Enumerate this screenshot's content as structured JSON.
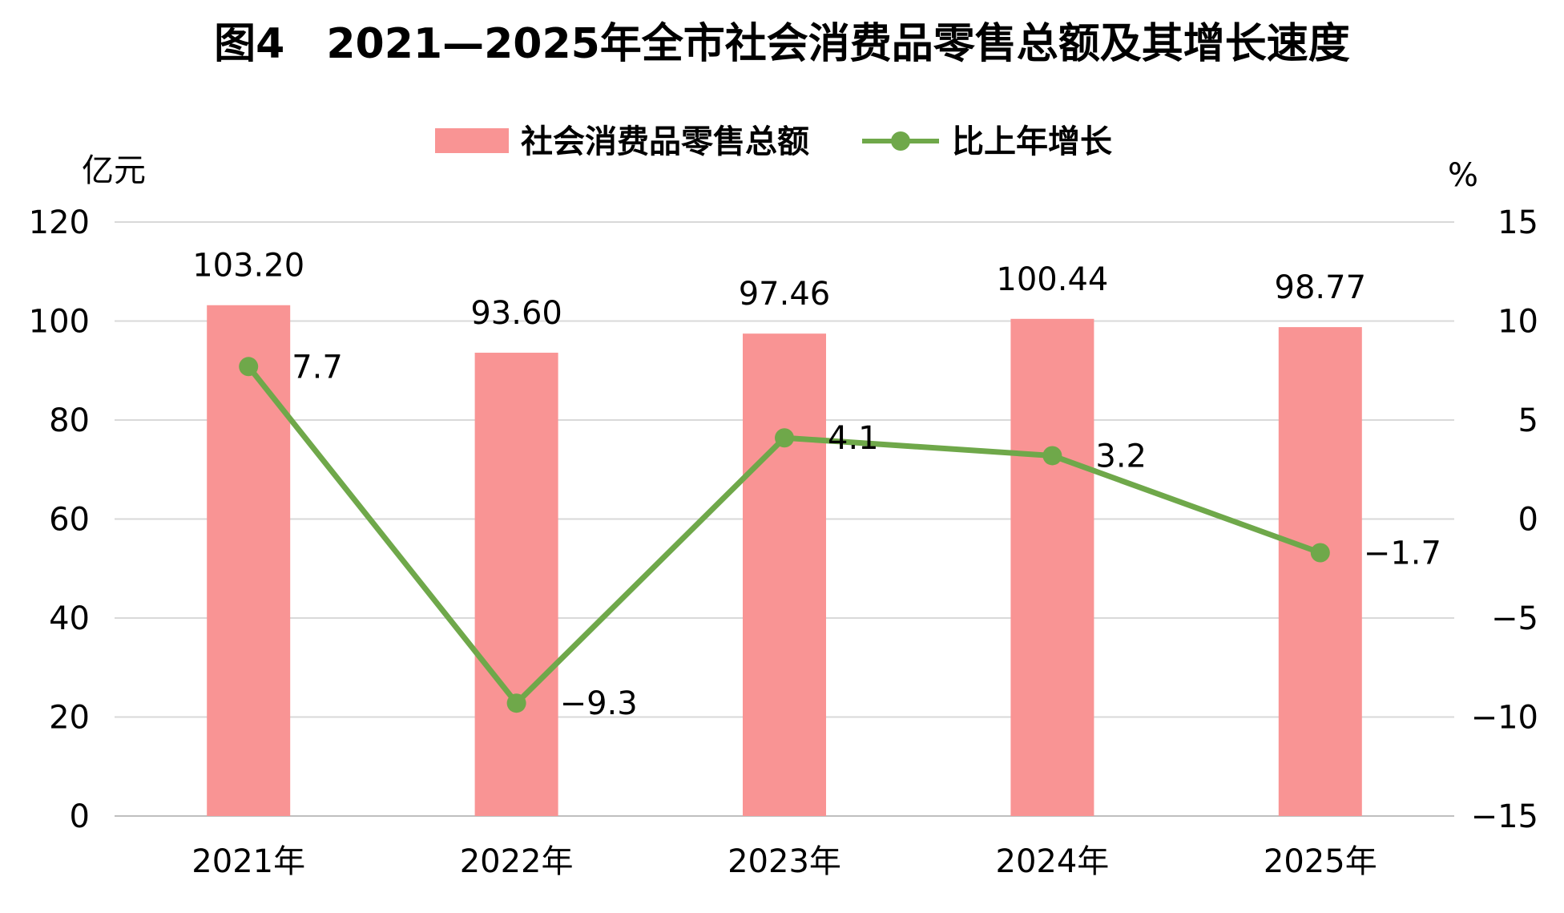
{
  "chart_data": {
    "type": "bar",
    "title": "图4　2021—2025年全市社会消费品零售总额及其增长速度",
    "categories": [
      "2021年",
      "2022年",
      "2023年",
      "2024年",
      "2025年"
    ],
    "series": [
      {
        "name": "社会消费品零售总额",
        "type": "bar",
        "axis": "left",
        "values": [
          103.2,
          93.6,
          97.46,
          100.44,
          98.77
        ],
        "labels": [
          "103.20",
          "93.60",
          "97.46",
          "100.44",
          "98.77"
        ],
        "color": "#f99494"
      },
      {
        "name": "比上年增长",
        "type": "line",
        "axis": "right",
        "values": [
          7.7,
          -9.3,
          4.1,
          3.2,
          -1.7
        ],
        "labels": [
          "7.7",
          "−9.3",
          "4.1",
          "3.2",
          "−1.7"
        ],
        "color": "#6fa84a"
      }
    ],
    "y_left": {
      "unit": "亿元",
      "ylim": [
        0,
        120
      ],
      "ticks": [
        0,
        20,
        40,
        60,
        80,
        100,
        120
      ],
      "tick_labels": [
        "0",
        "20",
        "40",
        "60",
        "80",
        "100",
        "120"
      ]
    },
    "y_right": {
      "unit": "%",
      "ylim": [
        -15,
        15
      ],
      "ticks": [
        -15,
        -10,
        -5,
        0,
        5,
        10,
        15
      ],
      "tick_labels": [
        "−15",
        "−10",
        "−5",
        "0",
        "5",
        "10",
        "15"
      ]
    },
    "grid": true,
    "legend_position": "top-center"
  }
}
